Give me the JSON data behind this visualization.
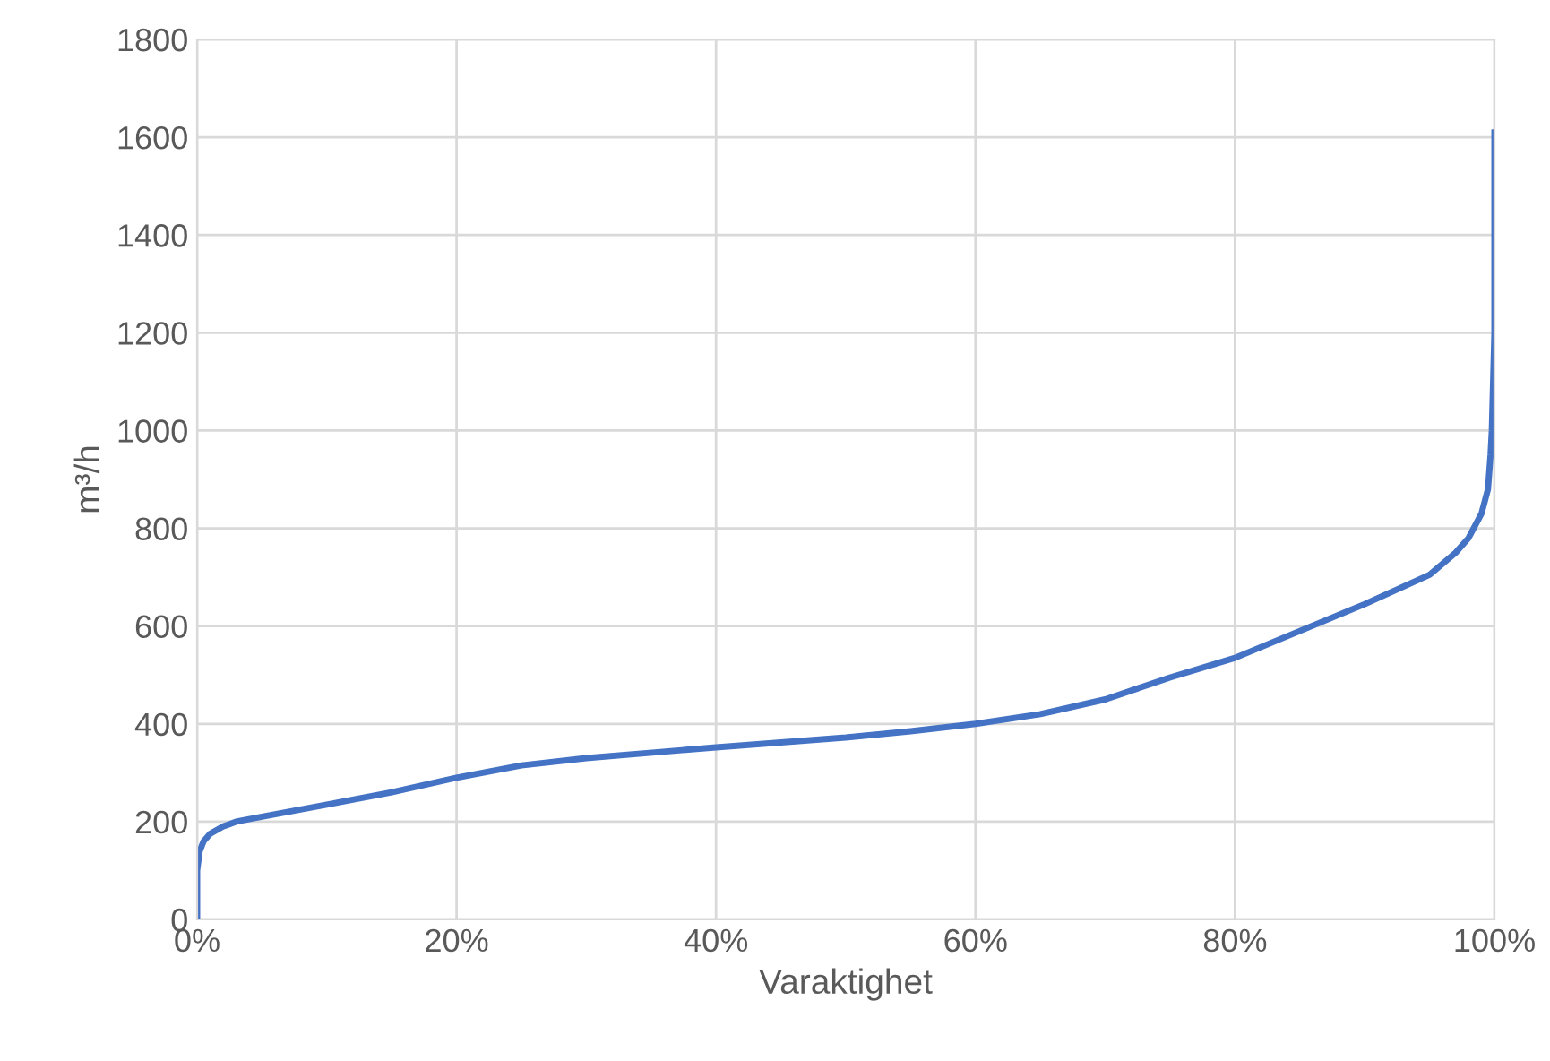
{
  "chart_data": {
    "type": "line",
    "xlabel": "Varaktighet",
    "ylabel": "m³/h",
    "x": [
      0,
      0,
      0.2,
      0.5,
      1,
      2,
      3,
      5,
      10,
      15,
      20,
      25,
      30,
      40,
      50,
      55,
      60,
      65,
      70,
      75,
      80,
      85,
      90,
      95,
      97,
      98,
      99,
      99.5,
      99.7,
      99.8,
      100,
      100
    ],
    "series": [
      {
        "color": "#4472c4",
        "values": [
          0,
          100,
          140,
          160,
          175,
          190,
          200,
          210,
          235,
          260,
          290,
          315,
          330,
          352,
          372,
          385,
          400,
          420,
          450,
          495,
          535,
          590,
          645,
          705,
          750,
          780,
          830,
          880,
          950,
          1000,
          1200,
          1610
        ]
      }
    ],
    "xlim": [
      0,
      100
    ],
    "ylim": [
      0,
      1800
    ],
    "xticks": [
      {
        "value": 0,
        "label": "0%"
      },
      {
        "value": 20,
        "label": "20%"
      },
      {
        "value": 40,
        "label": "40%"
      },
      {
        "value": 60,
        "label": "60%"
      },
      {
        "value": 80,
        "label": "80%"
      },
      {
        "value": 100,
        "label": "100%"
      }
    ],
    "yticks": [
      0,
      200,
      400,
      600,
      800,
      1000,
      1200,
      1400,
      1600,
      1800
    ],
    "grid": true,
    "legend": false,
    "marker": "none",
    "line_style": "solid"
  }
}
